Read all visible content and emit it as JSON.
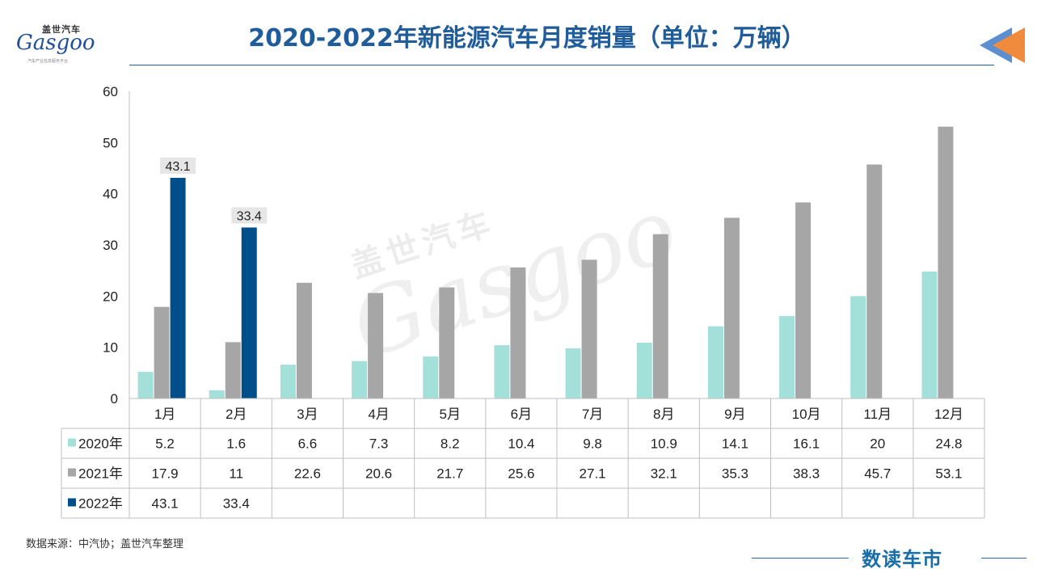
{
  "header": {
    "title": "2020-2022年新能源汽车月度销量（单位：万辆）",
    "logo_cn": "盖世汽车",
    "logo_en": "Gasgoo",
    "logo_sub": "汽车产业信息服务平台"
  },
  "watermark": {
    "cn": "盖世汽车",
    "en": "Gasgoo"
  },
  "footer": {
    "source": "数据来源：中汽协；盖世汽车整理",
    "brand": "数读车市"
  },
  "colors": {
    "title": "#1f5c99",
    "series_2020": "#a3e0da",
    "series_2021": "#a6a6a6",
    "series_2022": "#004f8b",
    "arrow_orange": "#f08a3c",
    "arrow_blue": "#5b8fcf"
  },
  "icons": {
    "nav": "back-arrow-icon"
  },
  "chart_data": {
    "type": "bar",
    "categories": [
      "1月",
      "2月",
      "3月",
      "4月",
      "5月",
      "6月",
      "7月",
      "8月",
      "9月",
      "10月",
      "11月",
      "12月"
    ],
    "series": [
      {
        "name": "2020年",
        "values": [
          5.2,
          1.6,
          6.6,
          7.3,
          8.2,
          10.4,
          9.8,
          10.9,
          14.1,
          16.1,
          20,
          24.8
        ]
      },
      {
        "name": "2021年",
        "values": [
          17.9,
          11,
          22.6,
          20.6,
          21.7,
          25.6,
          27.1,
          32.1,
          35.3,
          38.3,
          45.7,
          53.1
        ]
      },
      {
        "name": "2022年",
        "values": [
          43.1,
          33.4,
          null,
          null,
          null,
          null,
          null,
          null,
          null,
          null,
          null,
          null
        ]
      }
    ],
    "data_labels": [
      "43.1",
      "33.4"
    ],
    "yticks": [
      "0",
      "10",
      "20",
      "30",
      "40",
      "50",
      "60"
    ],
    "ylim": [
      0,
      60
    ],
    "grid": false,
    "legend": "data-table"
  }
}
